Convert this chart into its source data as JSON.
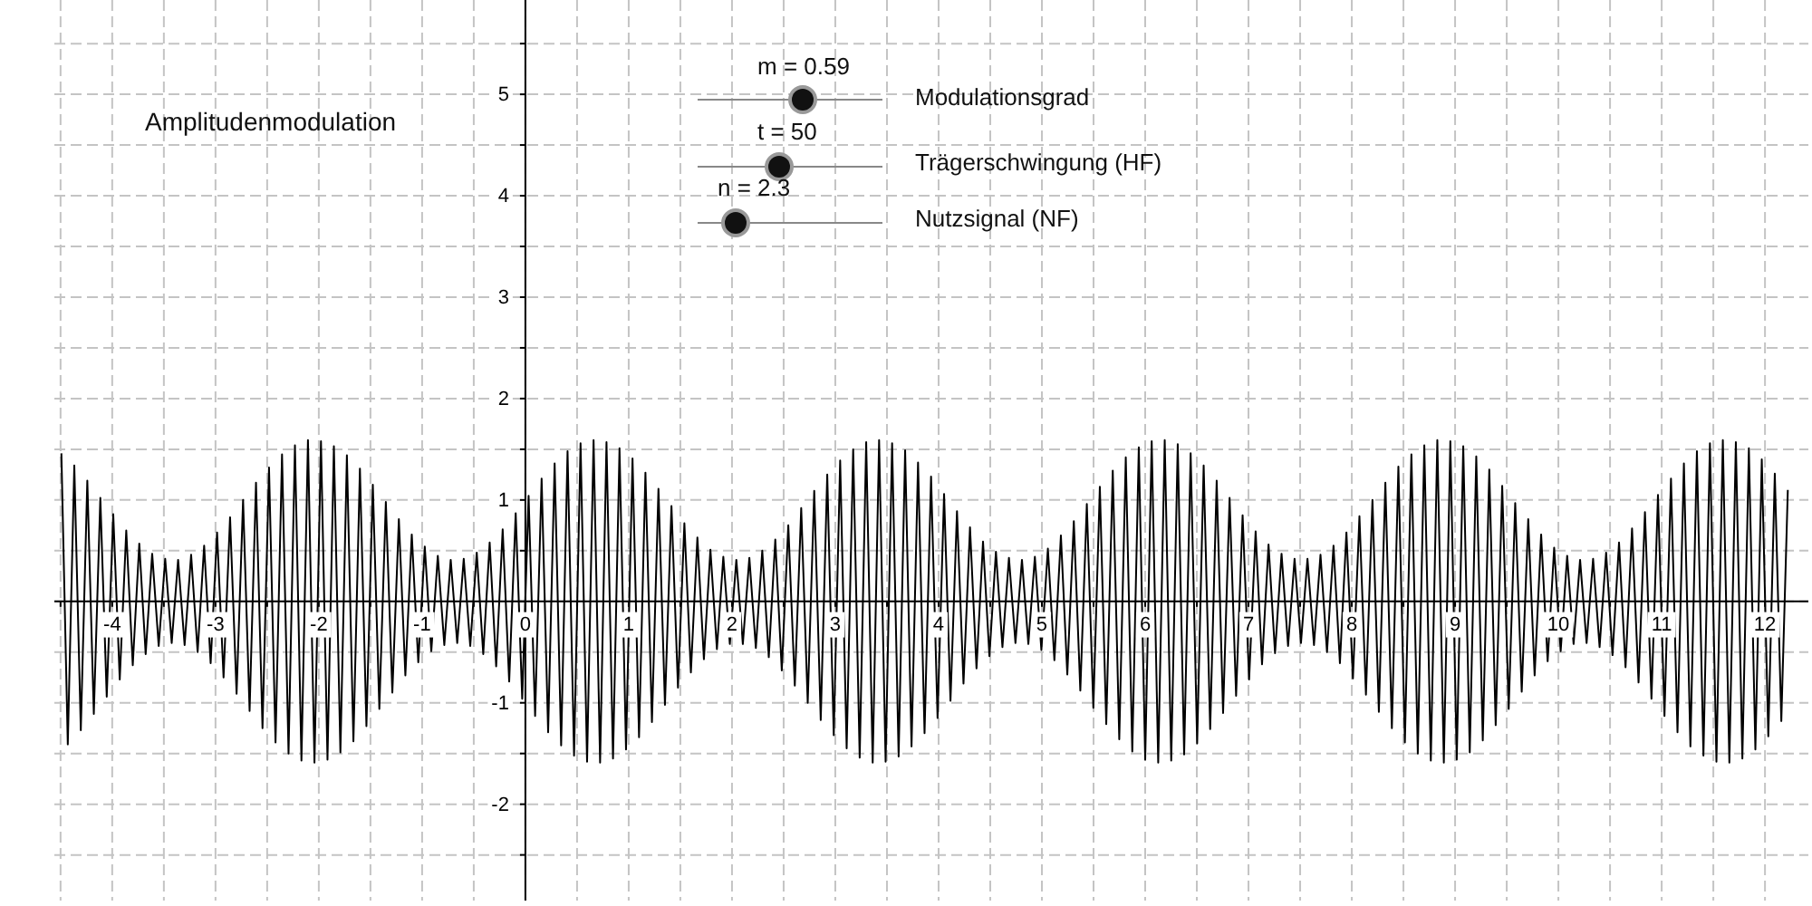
{
  "chart_data": {
    "type": "line",
    "title": "Amplitudenmodulation",
    "annotations": [
      "m = 0.59",
      "Modulationsgrad",
      "t = 50",
      "Trägerschwingung (HF)",
      "n = 2.3",
      "Nutzsignal (NF)"
    ],
    "xlim": [
      -4.56,
      12.42
    ],
    "ylim": [
      -2.95,
      5.93
    ],
    "xticks": [
      {
        "value": -4.5,
        "label": null
      },
      -4,
      {
        "value": -3.5,
        "label": null
      },
      -3,
      {
        "value": -2.5,
        "label": null
      },
      -2,
      {
        "value": -1.5,
        "label": null
      },
      -1,
      {
        "value": -0.5,
        "label": null
      },
      0,
      {
        "value": 0.5,
        "label": null
      },
      1,
      {
        "value": 1.5,
        "label": null
      },
      2,
      {
        "value": 2.5,
        "label": null
      },
      3,
      {
        "value": 3.5,
        "label": null
      },
      4,
      {
        "value": 4.5,
        "label": null
      },
      5,
      {
        "value": 5.5,
        "label": null
      },
      6,
      {
        "value": 6.5,
        "label": null
      },
      7,
      {
        "value": 7.5,
        "label": null
      },
      8,
      {
        "value": 8.5,
        "label": null
      },
      9,
      {
        "value": 9.5,
        "label": null
      },
      10,
      {
        "value": 10.5,
        "label": null
      },
      11,
      {
        "value": 11.5,
        "label": null
      },
      12
    ],
    "yticks": [
      {
        "value": -2.5,
        "label": null
      },
      -2,
      {
        "value": -1.5,
        "label": null
      },
      -1,
      {
        "value": -0.5,
        "label": null
      },
      {
        "value": 0,
        "label": null
      },
      {
        "value": 0.5,
        "label": null
      },
      1,
      {
        "value": 1.5,
        "label": null
      },
      2,
      {
        "value": 2.5,
        "label": null
      },
      3,
      {
        "value": 3.5,
        "label": null
      },
      4,
      {
        "value": 4.5,
        "label": null
      },
      5,
      {
        "value": 5.5,
        "label": null
      }
    ],
    "grid": true,
    "series": [
      {
        "color": "#000000",
        "x": [
          -4.492,
          -4.43,
          -4.367,
          -4.304,
          -4.241,
          -4.178,
          -4.115,
          -4.053,
          -3.99,
          -3.927,
          -3.864,
          -3.801,
          -3.738,
          -3.676,
          -3.613,
          -3.55,
          -3.487,
          -3.424,
          -3.362,
          -3.299,
          -3.236,
          -3.173,
          -3.11,
          -3.047,
          -2.985,
          -2.922,
          -2.859,
          -2.796,
          -2.733,
          -2.67,
          -2.608,
          -2.545,
          -2.482,
          -2.419,
          -2.356,
          -2.293,
          -2.231,
          -2.168,
          -2.105,
          -2.042,
          -1.979,
          -1.916,
          -1.854,
          -1.791,
          -1.728,
          -1.665,
          -1.602,
          -1.539,
          -1.477,
          -1.414,
          -1.351,
          -1.288,
          -1.225,
          -1.162,
          -1.1,
          -1.037,
          -0.974,
          -0.911,
          -0.848,
          -0.785,
          -0.723,
          -0.66,
          -0.597,
          -0.534,
          -0.471,
          -0.408,
          -0.346,
          -0.283,
          -0.22,
          -0.157,
          -0.094,
          -0.031,
          0.031,
          0.094,
          0.157,
          0.22,
          0.283,
          0.346,
          0.408,
          0.471,
          0.534,
          0.597,
          0.66,
          0.723,
          0.785,
          0.848,
          0.911,
          0.974,
          1.037,
          1.1,
          1.162,
          1.225,
          1.288,
          1.351,
          1.414,
          1.477,
          1.539,
          1.602,
          1.665,
          1.728,
          1.791,
          1.854,
          1.916,
          1.979,
          2.042,
          2.105,
          2.168,
          2.231,
          2.293,
          2.356,
          2.419,
          2.482,
          2.545,
          2.608,
          2.67,
          2.733,
          2.796,
          2.859,
          2.922,
          2.985,
          3.047,
          3.11,
          3.173,
          3.236,
          3.299,
          3.362,
          3.424,
          3.487,
          3.55,
          3.613,
          3.676,
          3.738,
          3.801,
          3.864,
          3.927,
          3.99,
          4.053,
          4.115,
          4.178,
          4.241,
          4.304,
          4.367,
          4.43,
          4.492,
          4.555,
          4.618,
          4.681,
          4.744,
          4.807,
          4.869,
          4.932,
          4.995,
          5.058,
          5.121,
          5.184,
          5.246,
          5.309,
          5.372,
          5.435,
          5.498,
          5.561,
          5.623,
          5.686,
          5.749,
          5.812,
          5.875,
          5.938,
          6.0,
          6.063,
          6.126,
          6.189,
          6.252,
          6.315,
          6.377,
          6.44,
          6.503,
          6.566,
          6.629,
          6.692,
          6.754,
          6.817,
          6.88,
          6.943,
          7.006,
          7.069,
          7.131,
          7.194,
          7.257,
          7.32,
          7.383,
          7.446,
          7.508,
          7.571,
          7.634,
          7.697,
          7.76,
          7.823,
          7.885,
          7.948,
          8.011,
          8.074,
          8.137,
          8.2,
          8.262,
          8.325,
          8.388,
          8.451,
          8.514,
          8.577,
          8.639,
          8.702,
          8.765,
          8.828,
          8.891,
          8.954,
          9.016,
          9.079,
          9.142,
          9.205,
          9.268,
          9.331,
          9.393,
          9.456,
          9.519,
          9.582,
          9.645,
          9.708,
          9.77,
          9.833,
          9.896,
          9.959,
          10.022,
          10.085,
          10.147,
          10.21,
          10.273,
          10.336,
          10.399,
          10.462,
          10.524,
          10.587,
          10.65,
          10.713,
          10.776,
          10.838,
          10.901,
          10.964,
          11.027,
          11.09,
          11.153,
          11.215,
          11.278,
          11.341,
          11.404,
          11.467,
          11.53,
          11.592,
          11.655,
          11.718,
          11.781,
          11.844,
          11.907,
          11.969,
          12.032,
          12.095,
          12.158,
          12.221
        ],
        "values": [
          1.46,
          -1.41,
          1.34,
          -1.27,
          1.19,
          -1.11,
          1.02,
          -0.94,
          0.86,
          -0.77,
          0.7,
          -0.63,
          0.57,
          -0.52,
          0.47,
          -0.44,
          0.42,
          -0.41,
          0.41,
          -0.43,
          0.46,
          -0.5,
          0.55,
          -0.61,
          0.68,
          -0.75,
          0.83,
          -0.91,
          1.0,
          -1.08,
          1.17,
          -1.25,
          1.32,
          -1.39,
          1.45,
          -1.5,
          1.54,
          -1.57,
          1.59,
          -1.59,
          1.58,
          -1.56,
          1.53,
          -1.49,
          1.44,
          -1.38,
          1.31,
          -1.23,
          1.15,
          -1.06,
          0.98,
          -0.9,
          0.81,
          -0.73,
          0.66,
          -0.6,
          0.54,
          -0.49,
          0.45,
          -0.43,
          0.41,
          -0.41,
          0.42,
          -0.44,
          0.48,
          -0.52,
          0.58,
          -0.64,
          0.71,
          -0.79,
          0.87,
          -0.96,
          1.04,
          -1.13,
          1.21,
          -1.29,
          1.36,
          -1.42,
          1.48,
          -1.52,
          1.56,
          -1.58,
          1.59,
          -1.59,
          1.57,
          -1.55,
          1.51,
          -1.46,
          1.41,
          -1.34,
          1.27,
          -1.19,
          1.11,
          -1.02,
          0.94,
          -0.85,
          0.77,
          -0.7,
          0.63,
          -0.57,
          0.51,
          -0.47,
          0.44,
          -0.42,
          0.41,
          -0.42,
          0.43,
          -0.46,
          0.5,
          -0.55,
          0.61,
          -0.68,
          0.75,
          -0.83,
          0.92,
          -1.0,
          1.09,
          -1.17,
          1.25,
          -1.32,
          1.39,
          -1.45,
          1.5,
          -1.54,
          1.57,
          -1.59,
          1.59,
          -1.58,
          1.56,
          -1.53,
          1.49,
          -1.43,
          1.37,
          -1.3,
          1.23,
          -1.15,
          1.06,
          -0.98,
          0.89,
          -0.81,
          0.73,
          -0.66,
          0.59,
          -0.54,
          0.49,
          -0.45,
          0.43,
          -0.41,
          0.41,
          -0.42,
          0.44,
          -0.48,
          0.52,
          -0.58,
          0.65,
          -0.72,
          0.79,
          -0.88,
          0.96,
          -1.05,
          1.13,
          -1.21,
          1.29,
          -1.36,
          1.42,
          -1.48,
          1.52,
          -1.56,
          1.58,
          -1.59,
          1.59,
          -1.57,
          1.55,
          -1.51,
          1.46,
          -1.4,
          1.34,
          -1.26,
          1.19,
          -1.1,
          1.02,
          -0.93,
          0.85,
          -0.77,
          0.69,
          -0.62,
          0.56,
          -0.51,
          0.47,
          -0.44,
          0.42,
          -0.41,
          0.42,
          -0.43,
          0.46,
          -0.5,
          0.55,
          -0.61,
          0.68,
          -0.76,
          0.84,
          -0.92,
          1.0,
          -1.09,
          1.17,
          -1.25,
          1.33,
          -1.39,
          1.45,
          -1.5,
          1.54,
          -1.57,
          1.59,
          -1.59,
          1.58,
          -1.56,
          1.53,
          -1.49,
          1.43,
          -1.37,
          1.3,
          -1.22,
          1.14,
          -1.06,
          0.97,
          -0.89,
          0.81,
          -0.73,
          0.66,
          -0.59,
          0.53,
          -0.49,
          0.45,
          -0.42,
          0.41,
          -0.41,
          0.42,
          -0.45,
          0.48,
          -0.53,
          0.58,
          -0.65,
          0.72,
          -0.8,
          0.88,
          -0.96,
          1.05,
          -1.13,
          1.21,
          -1.29,
          1.36,
          -1.43,
          1.48,
          -1.52,
          1.56,
          -1.58,
          1.59,
          -1.59,
          1.57,
          -1.55,
          1.51,
          -1.46,
          1.4,
          -1.33,
          1.26,
          -1.18,
          1.1
        ]
      }
    ]
  }
}
